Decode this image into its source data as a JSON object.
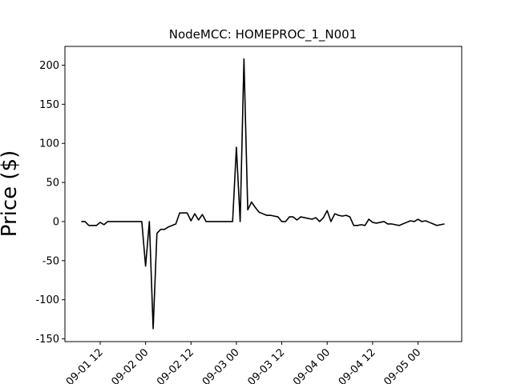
{
  "chart_data": {
    "type": "line",
    "title": "NodeMCC: HOMEPROC_1_N001",
    "y_label": "Price ($)",
    "x": [
      "09-01 07",
      "09-01 08",
      "09-01 09",
      "09-01 10",
      "09-01 11",
      "09-01 12",
      "09-01 13",
      "09-01 14",
      "09-01 15",
      "09-01 16",
      "09-01 17",
      "09-01 18",
      "09-01 19",
      "09-01 20",
      "09-01 21",
      "09-01 22",
      "09-01 23",
      "09-02 00",
      "09-02 01",
      "09-02 02",
      "09-02 03",
      "09-02 04",
      "09-02 05",
      "09-02 06",
      "09-02 07",
      "09-02 08",
      "09-02 09",
      "09-02 10",
      "09-02 11",
      "09-02 12",
      "09-02 13",
      "09-02 14",
      "09-02 15",
      "09-02 16",
      "09-02 17",
      "09-02 18",
      "09-02 19",
      "09-02 20",
      "09-02 21",
      "09-02 22",
      "09-02 23",
      "09-03 00",
      "09-03 01",
      "09-03 02",
      "09-03 03",
      "09-03 04",
      "09-03 05",
      "09-03 06",
      "09-03 07",
      "09-03 08",
      "09-03 09",
      "09-03 10",
      "09-03 11",
      "09-03 12",
      "09-03 13",
      "09-03 14",
      "09-03 15",
      "09-03 16",
      "09-03 17",
      "09-03 18",
      "09-03 19",
      "09-03 20",
      "09-03 21",
      "09-03 22",
      "09-03 23",
      "09-04 00",
      "09-04 01",
      "09-04 02",
      "09-04 03",
      "09-04 04",
      "09-04 05",
      "09-04 06",
      "09-04 07",
      "09-04 08",
      "09-04 09",
      "09-04 10",
      "09-04 11",
      "09-04 12",
      "09-04 13",
      "09-04 14",
      "09-04 15",
      "09-04 16",
      "09-04 17",
      "09-04 18",
      "09-04 19",
      "09-04 20",
      "09-04 21",
      "09-04 22",
      "09-04 23",
      "09-05 00",
      "09-05 01",
      "09-05 02",
      "09-05 03",
      "09-05 04",
      "09-05 05",
      "09-05 06",
      "09-05 07"
    ],
    "series": [
      {
        "name": "HOMEPROC_1_N001",
        "color": "#000000",
        "values": [
          0,
          0,
          -5,
          -5,
          -5,
          -1,
          -4,
          0,
          0,
          0,
          0,
          0,
          0,
          0,
          0,
          0,
          0,
          -57,
          0,
          -137,
          -15,
          -10,
          -10,
          -7,
          -5,
          -3,
          11,
          11,
          11,
          1,
          10,
          2,
          9,
          0,
          0,
          0,
          0,
          0,
          0,
          0,
          0,
          95,
          0,
          208,
          15,
          25,
          18,
          12,
          10,
          8,
          8,
          7,
          6,
          0,
          0,
          6,
          6,
          2,
          6,
          5,
          4,
          3,
          5,
          0,
          5,
          14,
          0,
          10,
          8,
          7,
          8,
          6,
          -5,
          -5,
          -4,
          -5,
          3,
          -1,
          -2,
          -1,
          0,
          -3,
          -3,
          -4,
          -5,
          -3,
          -1,
          1,
          0,
          3,
          0,
          1,
          -1,
          -3,
          -5,
          -4,
          -3
        ]
      }
    ],
    "xlim": [
      "09-01 02:41",
      "09-05 11:33"
    ],
    "xticks": [
      "09-01 12",
      "09-02 00",
      "09-02 12",
      "09-03 00",
      "09-03 12",
      "09-04 00",
      "09-04 12",
      "09-05 00"
    ],
    "ylim": [
      -153.5,
      224
    ],
    "yticks": [
      -150,
      -100,
      -50,
      0,
      50,
      100,
      150,
      200
    ]
  }
}
